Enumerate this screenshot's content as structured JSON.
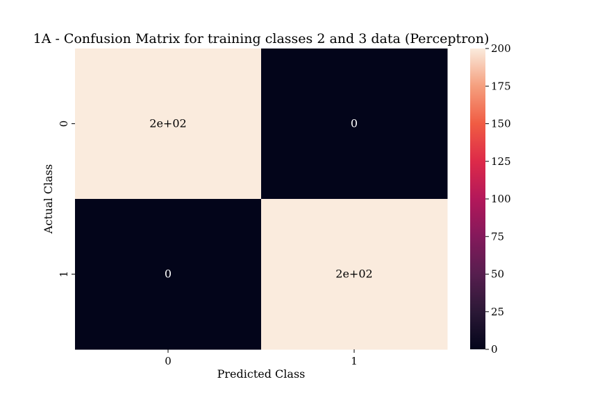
{
  "chart_data": {
    "type": "heatmap",
    "title": "1A - Confusion Matrix for training classes 2 and 3 data (Perceptron)",
    "xlabel": "Predicted Class",
    "ylabel": "Actual Class",
    "x_categories": [
      "0",
      "1"
    ],
    "y_categories": [
      "0",
      "1"
    ],
    "values": [
      [
        200,
        0
      ],
      [
        0,
        200
      ]
    ],
    "annotations": [
      [
        "2e+02",
        "0"
      ],
      [
        "0",
        "2e+02"
      ]
    ],
    "colorbar": {
      "range": [
        0,
        200
      ],
      "ticks": [
        0,
        25,
        50,
        75,
        100,
        125,
        150,
        175,
        200
      ],
      "colormap": "rocket"
    },
    "colors": {
      "high": "#faebdd",
      "low": "#03051a",
      "high_text": "#000000",
      "low_text": "#ffffff"
    }
  }
}
